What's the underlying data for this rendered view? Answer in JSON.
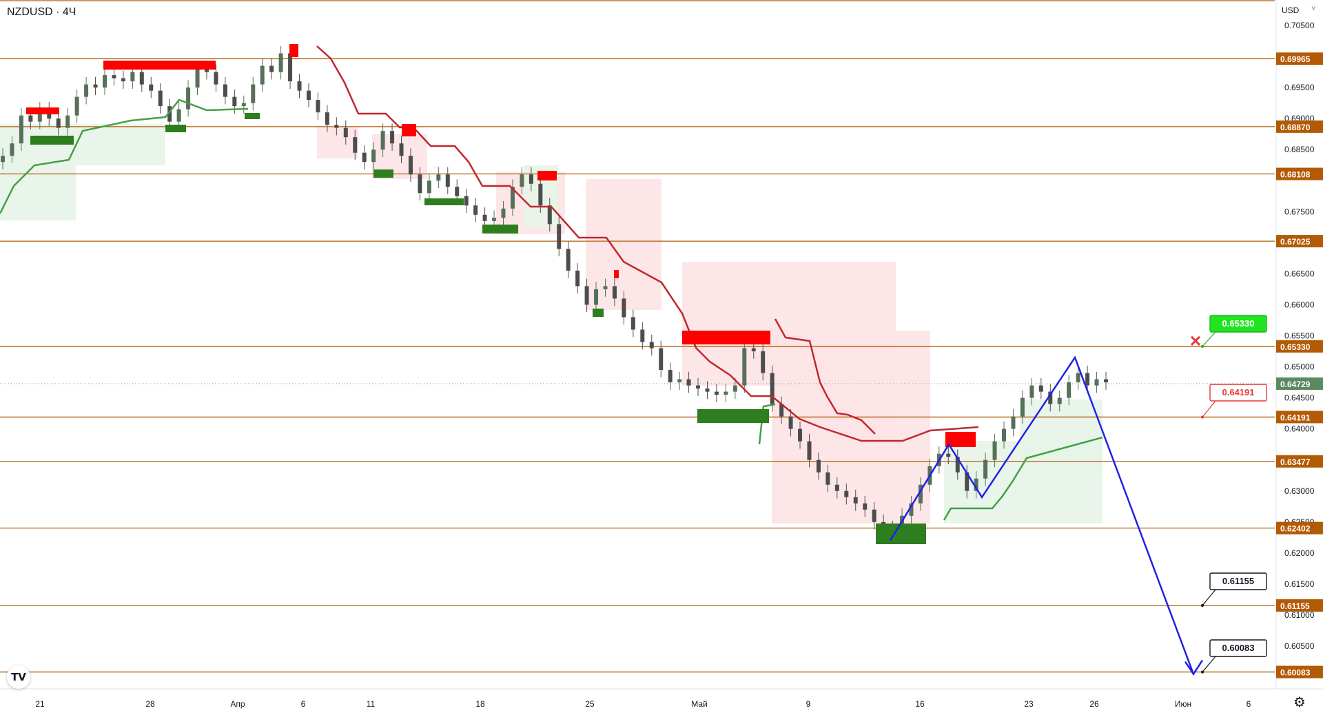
{
  "header": {
    "symbol": "NZDUSD · 4Ч",
    "currency": "USD",
    "currency_chevron": "˅"
  },
  "logo_text": "TV",
  "icons": {
    "settings": "gear-icon",
    "logo": "tradingview-logo-icon",
    "close_marker": "x-marker-icon"
  },
  "colors": {
    "level": "#b35a06",
    "resist_line": "#c0272d",
    "support_line": "#43a047",
    "resist_fill": "#fde3e6",
    "support_fill": "#e7f4e8",
    "resist_block": "#ff0000",
    "support_block": "#2e7d1e",
    "forecast": "#1f22e6",
    "up_candle": "#57705a",
    "down_candle": "#4d4d4d"
  },
  "chart_data": {
    "type": "candlestick",
    "symbol": "NZDUSD",
    "timeframe": "4Ч",
    "ylim": [
      0.598,
      0.7075
    ],
    "y_ticks": [
      "0.70500",
      "0.69500",
      "0.69000",
      "0.68500",
      "0.67500",
      "0.66500",
      "0.66000",
      "0.65500",
      "0.65000",
      "0.64500",
      "0.64000",
      "0.63000",
      "0.62500",
      "0.62000",
      "0.61500",
      "0.61000",
      "0.60500"
    ],
    "x_labels": [
      "21",
      "28",
      "Апр",
      "6",
      "11",
      "18",
      "25",
      "Май",
      "9",
      "16",
      "23",
      "26",
      "Июн",
      "6"
    ],
    "levels": [
      {
        "value": 0.69965,
        "label": "0.69965"
      },
      {
        "value": 0.6887,
        "label": "0.68870"
      },
      {
        "value": 0.68108,
        "label": "0.68108"
      },
      {
        "value": 0.67025,
        "label": "0.67025"
      },
      {
        "value": 0.6533,
        "label": "0.65330"
      },
      {
        "value": 0.64191,
        "label": "0.64191"
      },
      {
        "value": 0.63477,
        "label": "0.63477"
      },
      {
        "value": 0.62402,
        "label": "0.62402"
      },
      {
        "value": 0.61155,
        "label": "0.61155"
      },
      {
        "value": 0.60083,
        "label": "0.60083"
      }
    ],
    "current_price": {
      "value": 0.64729,
      "label": "0.64729"
    },
    "callouts": [
      {
        "label": "0.65330",
        "kind": "take-profit-green"
      },
      {
        "label": "0.64191",
        "kind": "entry-red"
      },
      {
        "label": "0.61155",
        "kind": "target-black"
      },
      {
        "label": "0.60083",
        "kind": "target-black"
      }
    ],
    "forecast_path": [
      0.622,
      0.6375,
      0.629,
      0.6515,
      0.6005
    ],
    "close_series": [
      0.684,
      0.686,
      0.6905,
      0.6895,
      0.6915,
      0.69,
      0.6885,
      0.6905,
      0.6935,
      0.6955,
      0.695,
      0.697,
      0.6965,
      0.696,
      0.6975,
      0.6955,
      0.6945,
      0.692,
      0.6895,
      0.6915,
      0.695,
      0.698,
      0.6975,
      0.6955,
      0.6935,
      0.692,
      0.6925,
      0.6955,
      0.6985,
      0.6975,
      0.7005,
      0.696,
      0.6945,
      0.693,
      0.691,
      0.689,
      0.6885,
      0.687,
      0.6845,
      0.683,
      0.685,
      0.688,
      0.686,
      0.684,
      0.681,
      0.678,
      0.68,
      0.681,
      0.679,
      0.6775,
      0.676,
      0.6745,
      0.6735,
      0.674,
      0.6755,
      0.679,
      0.681,
      0.6795,
      0.676,
      0.673,
      0.669,
      0.6655,
      0.663,
      0.66,
      0.6625,
      0.663,
      0.661,
      0.658,
      0.656,
      0.654,
      0.653,
      0.6495,
      0.6475,
      0.648,
      0.647,
      0.6465,
      0.646,
      0.6455,
      0.646,
      0.647,
      0.653,
      0.6525,
      0.649,
      0.644,
      0.642,
      0.64,
      0.638,
      0.635,
      0.633,
      0.631,
      0.63,
      0.629,
      0.628,
      0.627,
      0.625,
      0.624,
      0.6235,
      0.626,
      0.628,
      0.631,
      0.634,
      0.636,
      0.6355,
      0.633,
      0.63,
      0.632,
      0.635,
      0.638,
      0.64,
      0.642,
      0.645,
      0.647,
      0.646,
      0.644,
      0.645,
      0.6475,
      0.649,
      0.647,
      0.648,
      0.6475
    ]
  }
}
